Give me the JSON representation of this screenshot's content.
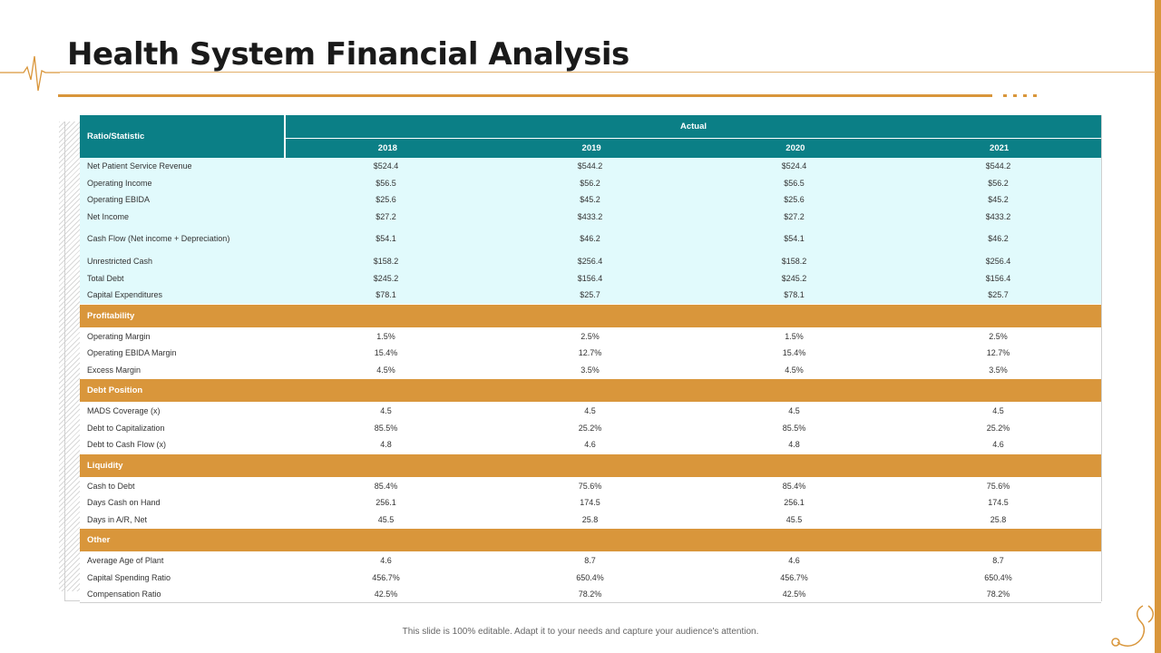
{
  "slide": {
    "title": "Health System Financial Analysis",
    "footer": "This slide is 100% editable. Adapt it to your needs and capture your audience's attention.",
    "accent_color": "#D9963B",
    "header_color": "#0B7F86"
  },
  "table": {
    "row_header": "Ratio/Statistic",
    "group_header": "Actual",
    "years": [
      "2018",
      "2019",
      "2020",
      "2021"
    ],
    "main_rows": [
      {
        "label": "Net Patient Service Revenue",
        "values": [
          "$524.4",
          "$544.2",
          "$524.4",
          "$544.2"
        ]
      },
      {
        "label": "Operating Income",
        "values": [
          "$56.5",
          "$56.2",
          "$56.5",
          "$56.2"
        ]
      },
      {
        "label": "Operating EBIDA",
        "values": [
          "$25.6",
          "$45.2",
          "$25.6",
          "$45.2"
        ]
      },
      {
        "label": "Net Income",
        "values": [
          "$27.2",
          "$433.2",
          "$27.2",
          "$433.2"
        ]
      },
      {
        "label": "Cash Flow (Net income + Depreciation)",
        "values": [
          "$54.1",
          "$46.2",
          "$54.1",
          "$46.2"
        ]
      },
      {
        "label": "Unrestricted Cash",
        "values": [
          "$158.2",
          "$256.4",
          "$158.2",
          "$256.4"
        ]
      },
      {
        "label": "Total Debt",
        "values": [
          "$245.2",
          "$156.4",
          "$245.2",
          "$156.4"
        ]
      },
      {
        "label": "Capital Expenditures",
        "values": [
          "$78.1",
          "$25.7",
          "$78.1",
          "$25.7"
        ]
      }
    ],
    "sections": [
      {
        "title": "Profitability",
        "rows": [
          {
            "label": "Operating Margin",
            "values": [
              "1.5%",
              "2.5%",
              "1.5%",
              "2.5%"
            ]
          },
          {
            "label": "Operating EBIDA Margin",
            "values": [
              "15.4%",
              "12.7%",
              "15.4%",
              "12.7%"
            ]
          },
          {
            "label": "Excess Margin",
            "values": [
              "4.5%",
              "3.5%",
              "4.5%",
              "3.5%"
            ]
          }
        ]
      },
      {
        "title": "Debt Position",
        "rows": [
          {
            "label": "MADS Coverage (x)",
            "values": [
              "4.5",
              "4.5",
              "4.5",
              "4.5"
            ]
          },
          {
            "label": "Debt to Capitalization",
            "values": [
              "85.5%",
              "25.2%",
              "85.5%",
              "25.2%"
            ]
          },
          {
            "label": "Debt to Cash Flow (x)",
            "values": [
              "4.8",
              "4.6",
              "4.8",
              "4.6"
            ]
          }
        ]
      },
      {
        "title": "Liquidity",
        "rows": [
          {
            "label": "Cash to Debt",
            "values": [
              "85.4%",
              "75.6%",
              "85.4%",
              "75.6%"
            ]
          },
          {
            "label": "Days Cash on Hand",
            "values": [
              "256.1",
              "174.5",
              "256.1",
              "174.5"
            ]
          },
          {
            "label": "Days in A/R, Net",
            "values": [
              "45.5",
              "25.8",
              "45.5",
              "25.8"
            ]
          }
        ]
      },
      {
        "title": "Other",
        "rows": [
          {
            "label": "Average Age of Plant",
            "values": [
              "4.6",
              "8.7",
              "4.6",
              "8.7"
            ]
          },
          {
            "label": "Capital Spending Ratio",
            "values": [
              "456.7%",
              "650.4%",
              "456.7%",
              "650.4%"
            ]
          },
          {
            "label": "Compensation Ratio",
            "values": [
              "42.5%",
              "78.2%",
              "42.5%",
              "78.2%"
            ]
          }
        ]
      }
    ]
  }
}
